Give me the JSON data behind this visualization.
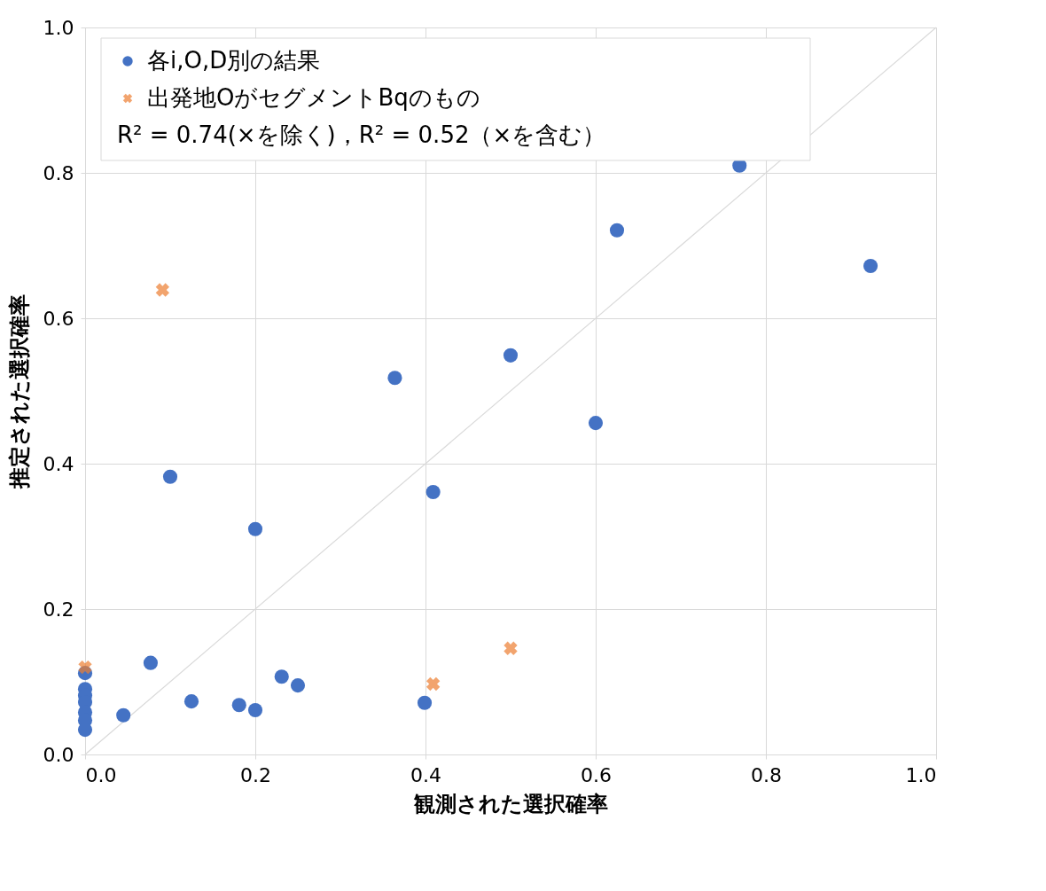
{
  "chart_data": {
    "type": "scatter",
    "xlabel": "観測された選択確率",
    "ylabel": "推定された選択確率",
    "xlim": [
      0,
      1.0
    ],
    "ylim": [
      0,
      1.0
    ],
    "xticks": [
      {
        "value": 0,
        "label": "0.0"
      },
      0.2,
      0.4,
      0.6,
      0.8,
      {
        "value": 1,
        "label": "1.0"
      }
    ],
    "yticks": [
      {
        "value": 0,
        "label": "0.0"
      },
      0.2,
      0.4,
      0.6,
      0.8,
      {
        "value": 1,
        "label": "1.0"
      }
    ],
    "grid": true,
    "legend": "top left",
    "annotations": [
      "R² = 0.74(×を除く)，R² = 0.52（×を含む）"
    ],
    "series": [
      {
        "type": "line",
        "color": "#d9d9d9",
        "x": [
          0,
          1
        ],
        "values": [
          0,
          1
        ]
      },
      {
        "name": "各i,O,D別の結果",
        "color": "#4472c4",
        "marker": "circle",
        "x": [
          0,
          0,
          0,
          0,
          0,
          0,
          0,
          0.045,
          0.077,
          0.125,
          0.181,
          0.2,
          0.231,
          0.25,
          0.1,
          0.2,
          0.364,
          0.409,
          0.399,
          0.5,
          0.6,
          0.625,
          0.769,
          0.923
        ],
        "values": [
          0.112,
          0.09,
          0.081,
          0.072,
          0.058,
          0.047,
          0.034,
          0.054,
          0.126,
          0.073,
          0.068,
          0.061,
          0.107,
          0.095,
          0.382,
          0.31,
          0.518,
          0.361,
          0.071,
          0.549,
          0.456,
          0.721,
          0.81,
          0.672
        ]
      },
      {
        "name": "出発地OがセグメントBqのもの",
        "color": "#ed7d31",
        "marker": "cross",
        "x": [
          0,
          0.091,
          0.409,
          0.5
        ],
        "values": [
          0.12,
          0.639,
          0.097,
          0.146
        ]
      }
    ]
  }
}
